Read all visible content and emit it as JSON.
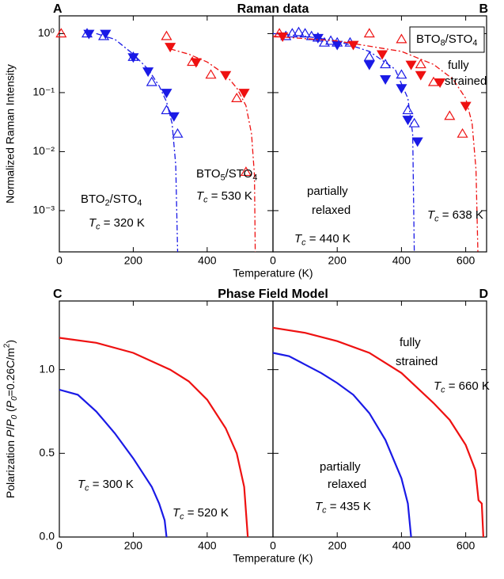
{
  "chart_data": [
    {
      "type": "scatter",
      "panel_label": "A",
      "title": "Raman data",
      "y_label": "Normalized Raman Intensity",
      "x_label": "Temperature (K)",
      "log_y": true,
      "xlim": [
        0,
        578
      ],
      "ylim": [
        0.0002,
        2
      ],
      "xticks": [
        0,
        200,
        400
      ],
      "yticks": [
        {
          "value": 1,
          "label": "10⁰"
        },
        {
          "value": 0.1,
          "label": "10⁻¹"
        },
        {
          "value": 0.01,
          "label": "10⁻²"
        },
        {
          "value": 0.001,
          "label": "10⁻³"
        }
      ],
      "series": [
        {
          "color": "#1a1ae6",
          "marker": "filled-down",
          "x": [
            80,
            125,
            200,
            240,
            290,
            310
          ],
          "values": [
            1.0,
            1.0,
            0.4,
            0.23,
            0.1,
            0.04
          ]
        },
        {
          "color": "#1a1ae6",
          "marker": "open-up",
          "x": [
            75,
            120,
            200,
            250,
            290,
            320
          ],
          "values": [
            1.0,
            0.9,
            0.4,
            0.15,
            0.05,
            0.02
          ]
        },
        {
          "color": "#1a1ae6",
          "marker": "dash-dot",
          "x": [
            100,
            150,
            200,
            240,
            270,
            290,
            305,
            315,
            320
          ],
          "values": [
            1.0,
            0.8,
            0.45,
            0.25,
            0.13,
            0.07,
            0.03,
            0.006,
            0.0002
          ]
        },
        {
          "color": "#ee1111",
          "marker": "filled-down",
          "x": [
            300,
            370,
            450,
            500
          ],
          "values": [
            0.6,
            0.33,
            0.2,
            0.1
          ]
        },
        {
          "color": "#ee1111",
          "marker": "open-up",
          "x": [
            5,
            290,
            360,
            410,
            480,
            505
          ],
          "values": [
            1.0,
            0.9,
            0.33,
            0.2,
            0.08,
            0.0045
          ]
        },
        {
          "color": "#ee1111",
          "marker": "dash-dot",
          "x": [
            300,
            350,
            400,
            450,
            480,
            505,
            520,
            528,
            530
          ],
          "values": [
            0.55,
            0.45,
            0.33,
            0.2,
            0.12,
            0.06,
            0.02,
            0.004,
            0.0002
          ]
        }
      ],
      "annotations": [
        {
          "color": "#1a1ae6",
          "parts": [
            {
              "text": "BTO",
              "style": "normal"
            },
            {
              "text": "2",
              "style": "sub"
            },
            {
              "text": "/STO",
              "style": "normal"
            },
            {
              "text": "4",
              "style": "sub"
            }
          ]
        },
        {
          "color": "#1a1ae6",
          "parts": [
            {
              "text": "T",
              "style": "italic"
            },
            {
              "text": "c",
              "style": "italic-sub"
            },
            {
              "text": " = 320 K",
              "style": "normal"
            }
          ]
        },
        {
          "color": "#ee1111",
          "parts": [
            {
              "text": "BTO",
              "style": "normal"
            },
            {
              "text": "5",
              "style": "sub"
            },
            {
              "text": "/STO",
              "style": "normal"
            },
            {
              "text": "4",
              "style": "sub"
            }
          ]
        },
        {
          "color": "#ee1111",
          "parts": [
            {
              "text": "T",
              "style": "italic"
            },
            {
              "text": "c",
              "style": "italic-sub"
            },
            {
              "text": " = 530 K",
              "style": "normal"
            }
          ]
        }
      ]
    },
    {
      "type": "scatter",
      "panel_label": "B",
      "log_y": true,
      "xlim": [
        0,
        665
      ],
      "ylim": [
        0.0002,
        2
      ],
      "xticks": [
        0,
        200,
        400,
        600
      ],
      "yticks": [
        1,
        0.1,
        0.01,
        0.001
      ],
      "series": [
        {
          "color": "#1a1ae6",
          "marker": "open-up",
          "x": [
            40,
            60,
            80,
            100,
            120,
            140,
            160,
            180,
            200,
            240,
            300,
            350,
            400,
            420,
            440
          ],
          "values": [
            0.9,
            1.0,
            1.05,
            1.0,
            0.9,
            0.85,
            0.7,
            0.75,
            0.7,
            0.7,
            0.4,
            0.3,
            0.2,
            0.05,
            0.03
          ]
        },
        {
          "color": "#1a1ae6",
          "marker": "filled-down",
          "x": [
            140,
            200,
            300,
            350,
            400,
            420,
            450
          ],
          "values": [
            0.85,
            0.65,
            0.3,
            0.17,
            0.12,
            0.035,
            0.015
          ]
        },
        {
          "color": "#1a1ae6",
          "marker": "dash-dot",
          "x": [
            0,
            100,
            200,
            300,
            380,
            420,
            435,
            440
          ],
          "values": [
            1.0,
            0.9,
            0.75,
            0.5,
            0.25,
            0.08,
            0.02,
            0.0002
          ]
        },
        {
          "color": "#ee1111",
          "marker": "open-up",
          "x": [
            20,
            300,
            400,
            460,
            500,
            550,
            590
          ],
          "values": [
            1.0,
            1.0,
            0.8,
            0.3,
            0.15,
            0.04,
            0.02
          ]
        },
        {
          "color": "#ee1111",
          "marker": "filled-down",
          "x": [
            30,
            250,
            340,
            430,
            460,
            520,
            600
          ],
          "values": [
            0.9,
            0.65,
            0.45,
            0.3,
            0.2,
            0.15,
            0.06
          ]
        },
        {
          "color": "#ee1111",
          "marker": "dash-dot",
          "x": [
            0,
            200,
            400,
            500,
            560,
            600,
            620,
            632,
            638
          ],
          "values": [
            0.9,
            0.75,
            0.5,
            0.3,
            0.17,
            0.08,
            0.03,
            0.005,
            0.0002
          ]
        }
      ],
      "annotations": [
        {
          "color": "#000000",
          "boxed": true,
          "parts": [
            {
              "text": "BTO",
              "style": "normal"
            },
            {
              "text": "8",
              "style": "sub"
            },
            {
              "text": "/STO",
              "style": "normal"
            },
            {
              "text": "4",
              "style": "sub"
            }
          ]
        },
        {
          "color": "#ee1111",
          "parts": [
            {
              "text": "fully",
              "style": "normal"
            }
          ]
        },
        {
          "color": "#ee1111",
          "parts": [
            {
              "text": "strained",
              "style": "normal"
            }
          ]
        },
        {
          "color": "#1a1ae6",
          "parts": [
            {
              "text": "partially",
              "style": "normal"
            }
          ]
        },
        {
          "color": "#1a1ae6",
          "parts": [
            {
              "text": "relaxed",
              "style": "normal"
            }
          ]
        },
        {
          "color": "#1a1ae6",
          "parts": [
            {
              "text": "T",
              "style": "italic"
            },
            {
              "text": "c",
              "style": "italic-sub"
            },
            {
              "text": " = 440 K",
              "style": "normal"
            }
          ]
        },
        {
          "color": "#ee1111",
          "parts": [
            {
              "text": "T",
              "style": "italic"
            },
            {
              "text": "c",
              "style": "italic-sub"
            },
            {
              "text": " = 638 K",
              "style": "normal"
            }
          ]
        }
      ]
    },
    {
      "type": "line",
      "panel_label": "C",
      "title": "Phase Field Model",
      "x_label": "Temperature (K)",
      "y_label_parts": [
        {
          "text": "Polarization ",
          "style": "normal"
        },
        {
          "text": "P",
          "style": "italic"
        },
        {
          "text": "/",
          "style": "normal"
        },
        {
          "text": "P",
          "style": "italic"
        },
        {
          "text": "0",
          "style": "italic-sub"
        },
        {
          "text": " (",
          "style": "normal"
        },
        {
          "text": "P",
          "style": "italic"
        },
        {
          "text": "0",
          "style": "italic-sub"
        },
        {
          "text": "=0.26C/m",
          "style": "normal"
        },
        {
          "text": "2",
          "style": "sup"
        },
        {
          "text": ")",
          "style": "normal"
        }
      ],
      "log_y": false,
      "xlim": [
        0,
        578
      ],
      "ylim": [
        0,
        1.41
      ],
      "xticks": [
        0,
        200,
        400
      ],
      "yticks": [
        {
          "value": 0,
          "label": "0.0"
        },
        {
          "value": 0.5,
          "label": "0.5"
        },
        {
          "value": 1,
          "label": "1.0"
        }
      ],
      "series": [
        {
          "color": "#1a1ae6",
          "marker": "solid",
          "x": [
            0,
            50,
            100,
            150,
            200,
            250,
            270,
            285,
            290
          ],
          "values": [
            0.88,
            0.85,
            0.75,
            0.62,
            0.47,
            0.3,
            0.2,
            0.1,
            0
          ]
        },
        {
          "color": "#ee1111",
          "marker": "solid",
          "x": [
            0,
            100,
            200,
            300,
            350,
            400,
            450,
            480,
            500,
            510
          ],
          "values": [
            1.19,
            1.16,
            1.1,
            1.0,
            0.93,
            0.82,
            0.65,
            0.5,
            0.3,
            0
          ]
        }
      ],
      "annotations": [
        {
          "color": "#1a1ae6",
          "parts": [
            {
              "text": "T",
              "style": "italic"
            },
            {
              "text": "c",
              "style": "italic-sub"
            },
            {
              "text": " = 300 K",
              "style": "normal"
            }
          ]
        },
        {
          "color": "#ee1111",
          "parts": [
            {
              "text": "T",
              "style": "italic"
            },
            {
              "text": "c",
              "style": "italic-sub"
            },
            {
              "text": " = 520 K",
              "style": "normal"
            }
          ]
        }
      ]
    },
    {
      "type": "line",
      "panel_label": "D",
      "log_y": false,
      "xlim": [
        0,
        665
      ],
      "ylim": [
        0,
        1.41
      ],
      "xticks": [
        0,
        200,
        400,
        600
      ],
      "yticks": [
        0,
        0.5,
        1
      ],
      "series": [
        {
          "color": "#1a1ae6",
          "marker": "solid",
          "x": [
            0,
            50,
            100,
            150,
            200,
            250,
            300,
            350,
            400,
            420,
            430
          ],
          "values": [
            1.1,
            1.08,
            1.03,
            0.98,
            0.92,
            0.85,
            0.74,
            0.58,
            0.35,
            0.2,
            0
          ]
        },
        {
          "color": "#ee1111",
          "marker": "solid",
          "x": [
            0,
            100,
            200,
            300,
            400,
            500,
            550,
            600,
            630,
            640,
            650,
            655
          ],
          "values": [
            1.25,
            1.22,
            1.17,
            1.1,
            0.98,
            0.8,
            0.7,
            0.55,
            0.4,
            0.22,
            0.2,
            0
          ]
        }
      ],
      "annotations": [
        {
          "color": "#ee1111",
          "parts": [
            {
              "text": "fully",
              "style": "normal"
            }
          ]
        },
        {
          "color": "#ee1111",
          "parts": [
            {
              "text": "strained",
              "style": "normal"
            }
          ]
        },
        {
          "color": "#ee1111",
          "parts": [
            {
              "text": "T",
              "style": "italic"
            },
            {
              "text": "c",
              "style": "italic-sub"
            },
            {
              "text": " = 660 K",
              "style": "normal"
            }
          ]
        },
        {
          "color": "#1a1ae6",
          "parts": [
            {
              "text": "partially",
              "style": "normal"
            }
          ]
        },
        {
          "color": "#1a1ae6",
          "parts": [
            {
              "text": "relaxed",
              "style": "normal"
            }
          ]
        },
        {
          "color": "#1a1ae6",
          "parts": [
            {
              "text": "T",
              "style": "italic"
            },
            {
              "text": "c",
              "style": "italic-sub"
            },
            {
              "text": " = 435 K",
              "style": "normal"
            }
          ]
        }
      ]
    }
  ]
}
